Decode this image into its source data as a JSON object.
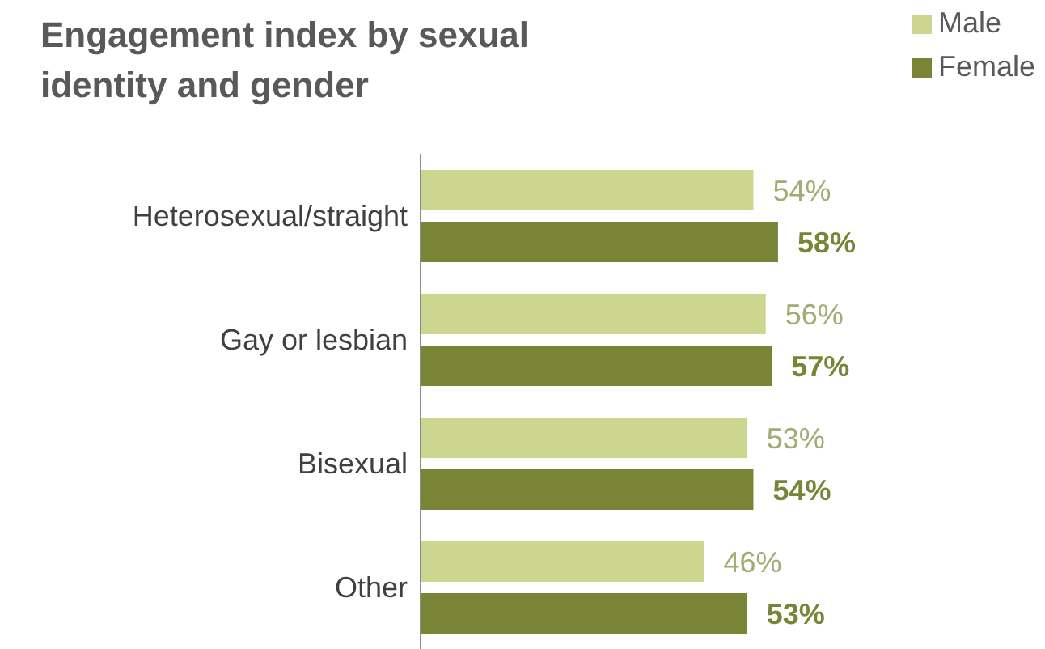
{
  "chart_data": {
    "type": "bar",
    "orientation": "horizontal",
    "title": "Engagement index by sexual identity and gender",
    "categories": [
      "Heterosexual/straight",
      "Gay or lesbian",
      "Bisexual",
      "Other"
    ],
    "series": [
      {
        "name": "Male",
        "color": "#cdd68e",
        "values": [
          54,
          56,
          53,
          46
        ],
        "value_labels": [
          "54%",
          "56%",
          "53%",
          "46%"
        ]
      },
      {
        "name": "Female",
        "color": "#7a8437",
        "values": [
          58,
          57,
          54,
          53
        ],
        "value_labels": [
          "58%",
          "57%",
          "54%",
          "53%"
        ]
      }
    ],
    "tick_labels": "y",
    "legend": "top right",
    "grid": false
  }
}
